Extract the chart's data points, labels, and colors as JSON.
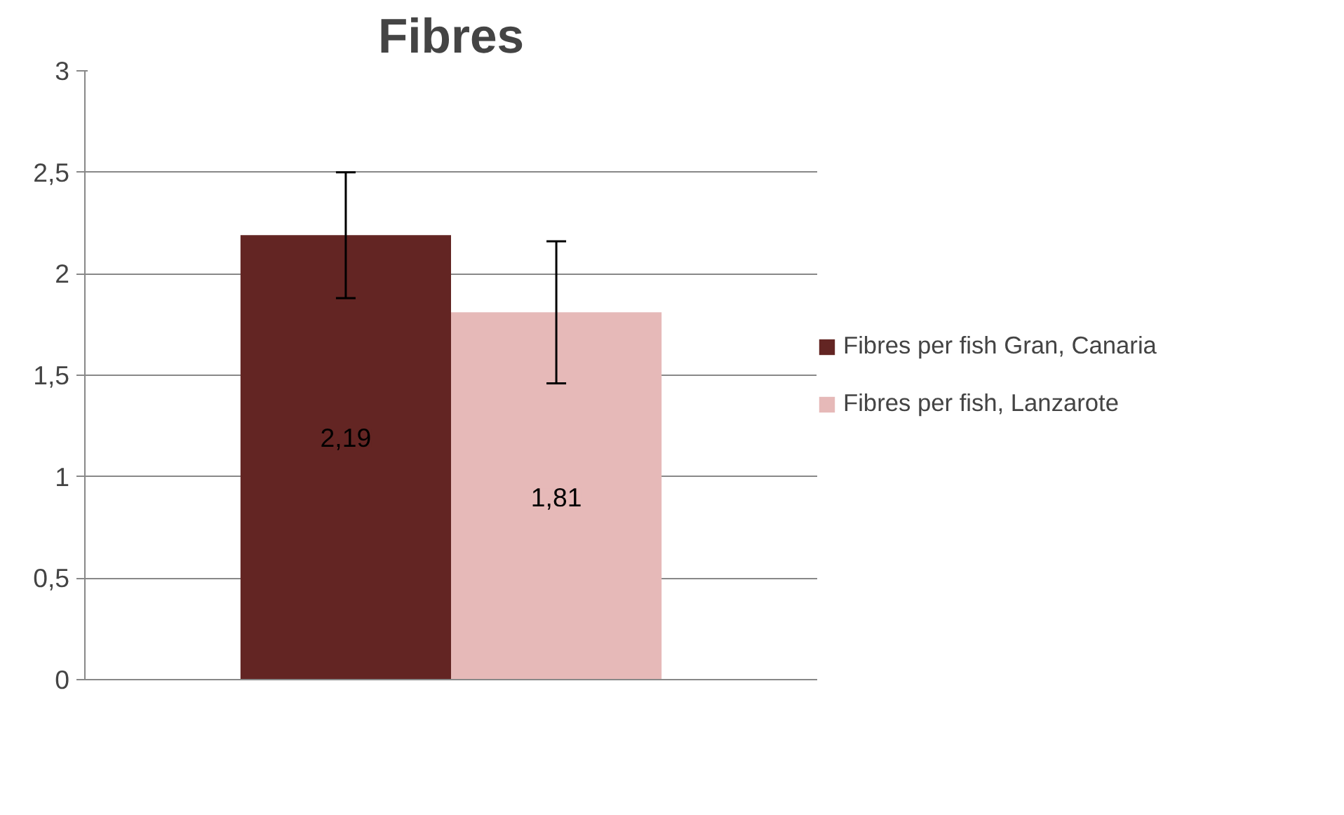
{
  "chart_data": {
    "type": "bar",
    "title": "Fibres",
    "categories": [
      null
    ],
    "series": [
      {
        "name": "Fibres per fish Gran, Canaria",
        "color": "#632523",
        "values": [
          2.19
        ],
        "errors": [
          0.31
        ],
        "value_labels": [
          "2,19"
        ]
      },
      {
        "name": "Fibres per fish, Lanzarote",
        "color": "#e6b9b8",
        "values": [
          1.81
        ],
        "errors": [
          0.35
        ],
        "value_labels": [
          "1,81"
        ]
      }
    ],
    "ylim": [
      0,
      3
    ],
    "yticks": [
      0,
      {
        "value": 0.5,
        "label": "0,5"
      },
      1,
      {
        "value": 1.5,
        "label": "1,5"
      },
      2,
      {
        "value": 2.5,
        "label": "2,5"
      },
      3
    ],
    "grid": "y",
    "legend": "right"
  }
}
